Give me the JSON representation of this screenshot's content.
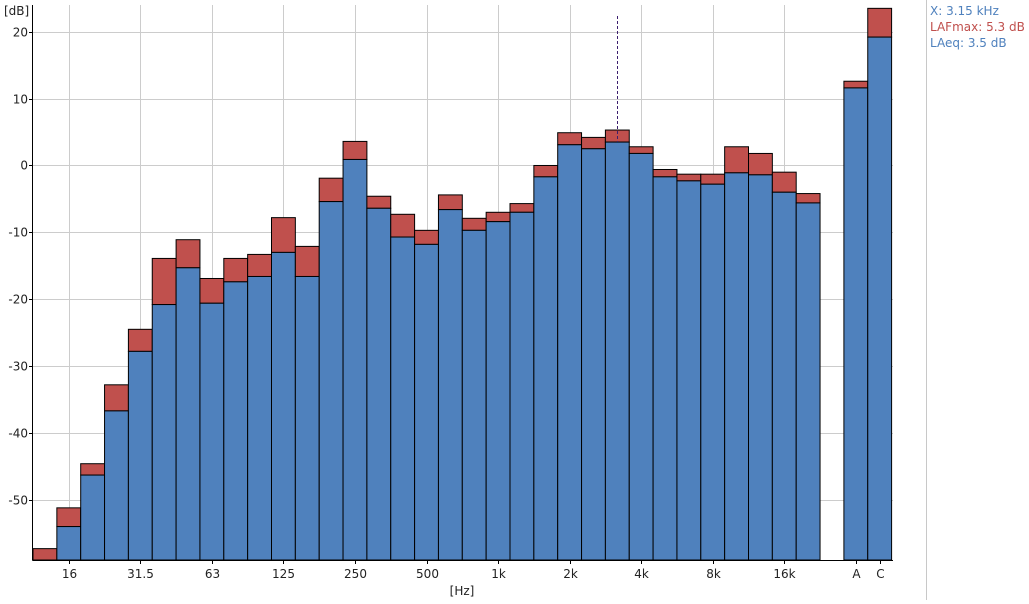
{
  "chart_data": {
    "type": "bar",
    "ylabel": "[dB]",
    "xlabel": "[Hz]",
    "ylim": [
      -59,
      24
    ],
    "yticks": [
      20,
      10,
      0,
      -10,
      -20,
      -30,
      -40,
      -50
    ],
    "grid": true,
    "categories": [
      "12.5",
      "16",
      "20",
      "25",
      "31.5",
      "40",
      "50",
      "63",
      "80",
      "100",
      "125",
      "160",
      "200",
      "250",
      "315",
      "400",
      "500",
      "630",
      "800",
      "1k",
      "1.25k",
      "1.6k",
      "2k",
      "2.5k",
      "3.15k",
      "4k",
      "5k",
      "6.3k",
      "8k",
      "10k",
      "12.5k",
      "16k",
      "20k"
    ],
    "category_labels": [
      "",
      "16",
      "",
      "",
      "31.5",
      "",
      "",
      "63",
      "",
      "",
      "125",
      "",
      "",
      "250",
      "",
      "",
      "500",
      "",
      "",
      "1k",
      "",
      "",
      "2k",
      "",
      "",
      "4k",
      "",
      "",
      "8k",
      "",
      "",
      "16k",
      ""
    ],
    "overall_categories": [
      "A",
      "C"
    ],
    "series": [
      {
        "name": "LAeq",
        "values": [
          -59,
          -54,
          -46.3,
          -36.7,
          -27.8,
          -20.8,
          -15.3,
          -20.6,
          -17.4,
          -16.6,
          -13,
          -16.6,
          -5.4,
          0.9,
          -6.4,
          -10.7,
          -11.8,
          -6.6,
          -9.7,
          -8.4,
          -7,
          -1.7,
          3.1,
          2.5,
          3.5,
          1.8,
          -1.7,
          -2.3,
          -2.8,
          -1.1,
          -1.4,
          -4,
          -5.6
        ],
        "overall": [
          11.6,
          19.2
        ],
        "color": "#4f81bd"
      },
      {
        "name": "LAFmax",
        "values": [
          -57.3,
          -51.2,
          -44.6,
          -32.8,
          -24.5,
          -13.9,
          -11.1,
          -16.9,
          -13.9,
          -13.3,
          -7.8,
          -12.1,
          -1.9,
          3.6,
          -4.6,
          -7.3,
          -9.7,
          -4.4,
          -7.9,
          -7,
          -5.7,
          0,
          4.9,
          4.2,
          5.3,
          2.8,
          -0.6,
          -1.3,
          -1.3,
          2.8,
          1.8,
          -1,
          -4.2
        ],
        "overall": [
          12.6,
          23.5
        ],
        "color": "#c0504d"
      }
    ],
    "cursor": {
      "category": "3.15k"
    }
  },
  "readout": {
    "x_text": "X: 3.15 kHz",
    "lafmax_text": "LAFmax: 5.3 dB",
    "laeq_text": "LAeq: 3.5 dB",
    "x_color": "#4f81bd",
    "lafmax_color": "#c0504d",
    "laeq_color": "#4f81bd"
  }
}
